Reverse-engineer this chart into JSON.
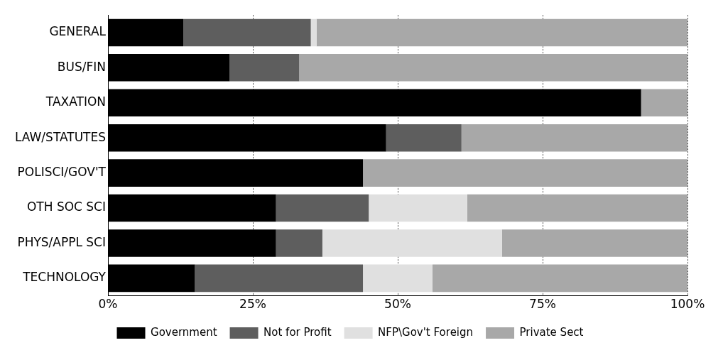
{
  "chart_data": {
    "type": "bar",
    "orientation": "horizontal",
    "stacked": true,
    "categories": [
      "GENERAL",
      "BUS/FIN",
      "TAXATION",
      "LAW/STATUTES",
      "POLISCI/GOV'T",
      "OTH SOC SCI",
      "PHYS/APPL SCI",
      "TECHNOLOGY"
    ],
    "series": [
      {
        "name": "Government",
        "color": "#000000",
        "values": [
          13,
          21,
          92,
          48,
          44,
          29,
          29,
          15
        ]
      },
      {
        "name": "Not for Profit",
        "color": "#5e5e5e",
        "values": [
          22,
          12,
          null,
          13,
          null,
          16,
          8,
          29
        ]
      },
      {
        "name": "NFP\\Gov't Foreign",
        "color": "#e0e0e0",
        "values": [
          1,
          null,
          null,
          null,
          null,
          17,
          31,
          12
        ]
      },
      {
        "name": "Private Sect",
        "color": "#a8a8a8",
        "values": [
          64,
          67,
          8,
          39,
          56,
          38,
          32,
          44
        ]
      }
    ],
    "xlim": [
      0,
      100
    ],
    "xticks": [
      {
        "value": 0,
        "label": "0%"
      },
      {
        "value": 25,
        "label": "25%"
      },
      {
        "value": 50,
        "label": "50%"
      },
      {
        "value": 75,
        "label": "75%"
      },
      {
        "value": 100,
        "label": "100%"
      }
    ],
    "grid": "x",
    "legend": "bottom"
  }
}
